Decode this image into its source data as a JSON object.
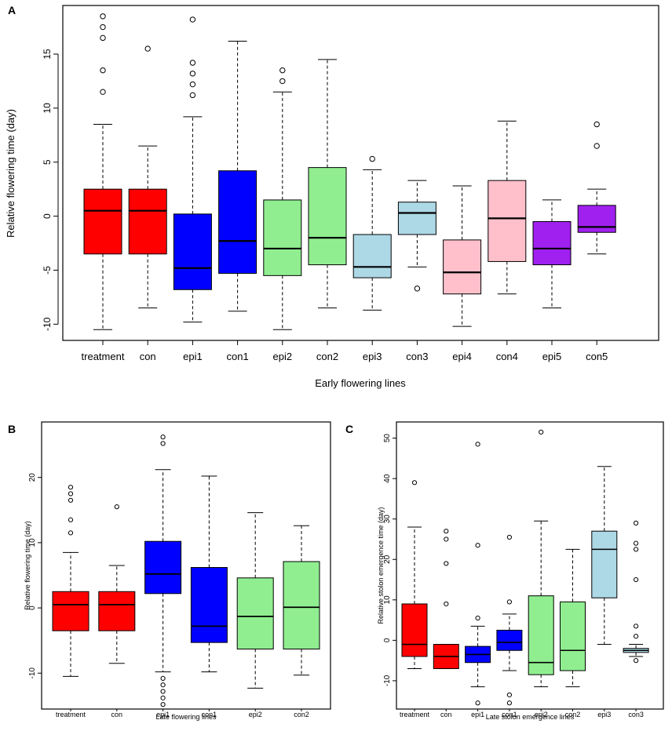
{
  "colors": {
    "red": "#ff0000",
    "blue": "#0000ff",
    "green": "#90ee90",
    "lightblue": "#add8e6",
    "pink": "#ffc0cb",
    "purple": "#a020f0"
  },
  "chart_data": [
    {
      "panel": "A",
      "type": "boxplot",
      "xlabel": "Early flowering lines",
      "ylabel": "Relative flowering time (day)",
      "ylim": [
        -11.5,
        19.5
      ],
      "yticks": [
        -10,
        -5,
        0,
        5,
        10,
        15
      ],
      "categories": [
        "treatment",
        "con",
        "epi1",
        "con1",
        "epi2",
        "con2",
        "epi3",
        "con3",
        "epi4",
        "con4",
        "epi5",
        "con5"
      ],
      "boxes": [
        {
          "color": "red",
          "lower_whisker": -10.5,
          "q1": -3.5,
          "median": 0.5,
          "q3": 2.5,
          "upper_whisker": 8.5,
          "outliers": [
            11.5,
            13.5,
            16.5,
            17.5,
            18.5
          ]
        },
        {
          "color": "red",
          "lower_whisker": -8.5,
          "q1": -3.5,
          "median": 0.5,
          "q3": 2.5,
          "upper_whisker": 6.5,
          "outliers": [
            15.5
          ]
        },
        {
          "color": "blue",
          "lower_whisker": -9.8,
          "q1": -6.8,
          "median": -4.8,
          "q3": 0.2,
          "upper_whisker": 9.2,
          "outliers": [
            11.2,
            12.2,
            13.2,
            14.2,
            18.2
          ]
        },
        {
          "color": "blue",
          "lower_whisker": -8.8,
          "q1": -5.3,
          "median": -2.3,
          "q3": 4.2,
          "upper_whisker": 16.2,
          "outliers": []
        },
        {
          "color": "green",
          "lower_whisker": -10.5,
          "q1": -5.5,
          "median": -3.0,
          "q3": 1.5,
          "upper_whisker": 11.5,
          "outliers": [
            12.5,
            13.5
          ]
        },
        {
          "color": "green",
          "lower_whisker": -8.5,
          "q1": -4.5,
          "median": -2.0,
          "q3": 4.5,
          "upper_whisker": 14.5,
          "outliers": []
        },
        {
          "color": "lightblue",
          "lower_whisker": -8.7,
          "q1": -5.7,
          "median": -4.7,
          "q3": -1.7,
          "upper_whisker": 4.3,
          "outliers": [
            5.3
          ]
        },
        {
          "color": "lightblue",
          "lower_whisker": -4.7,
          "q1": -1.7,
          "median": 0.3,
          "q3": 1.3,
          "upper_whisker": 3.3,
          "outliers": [
            -6.7
          ]
        },
        {
          "color": "pink",
          "lower_whisker": -10.2,
          "q1": -7.2,
          "median": -5.2,
          "q3": -2.2,
          "upper_whisker": 2.8,
          "outliers": []
        },
        {
          "color": "pink",
          "lower_whisker": -7.2,
          "q1": -4.2,
          "median": -0.2,
          "q3": 3.3,
          "upper_whisker": 8.8,
          "outliers": []
        },
        {
          "color": "purple",
          "lower_whisker": -8.5,
          "q1": -4.5,
          "median": -3.0,
          "q3": -0.5,
          "upper_whisker": 1.5,
          "outliers": []
        },
        {
          "color": "purple",
          "lower_whisker": -3.5,
          "q1": -1.5,
          "median": -1.0,
          "q3": 1.0,
          "upper_whisker": 2.5,
          "outliers": [
            6.5,
            8.5
          ]
        }
      ]
    },
    {
      "panel": "B",
      "type": "boxplot",
      "xlabel": "Late flowering lines",
      "ylabel": "Relative flowering time (day)",
      "ylim": [
        -15.5,
        28.5
      ],
      "yticks": [
        -10,
        0,
        10,
        20
      ],
      "categories": [
        "treatment",
        "con",
        "epi1",
        "con1",
        "epi2",
        "con2"
      ],
      "boxes": [
        {
          "color": "red",
          "lower_whisker": -10.5,
          "q1": -3.5,
          "median": 0.5,
          "q3": 2.5,
          "upper_whisker": 8.5,
          "outliers": [
            11.5,
            13.5,
            16.5,
            17.5,
            18.5
          ]
        },
        {
          "color": "red",
          "lower_whisker": -8.5,
          "q1": -3.5,
          "median": 0.5,
          "q3": 2.5,
          "upper_whisker": 6.5,
          "outliers": [
            15.5
          ]
        },
        {
          "color": "blue",
          "lower_whisker": -9.8,
          "q1": 2.2,
          "median": 5.2,
          "q3": 10.2,
          "upper_whisker": 21.2,
          "outliers": [
            -10.8,
            -11.8,
            -12.8,
            -13.8,
            -14.8,
            25.2,
            26.2
          ]
        },
        {
          "color": "blue",
          "lower_whisker": -9.8,
          "q1": -5.3,
          "median": -2.8,
          "q3": 6.2,
          "upper_whisker": 20.2,
          "outliers": []
        },
        {
          "color": "green",
          "lower_whisker": -12.3,
          "q1": -6.3,
          "median": -1.3,
          "q3": 4.6,
          "upper_whisker": 14.6,
          "outliers": []
        },
        {
          "color": "green",
          "lower_whisker": -10.3,
          "q1": -6.3,
          "median": 0.1,
          "q3": 7.1,
          "upper_whisker": 12.6,
          "outliers": []
        }
      ]
    },
    {
      "panel": "C",
      "type": "boxplot",
      "xlabel": "Late stolon emergence lines",
      "ylabel": "Relative stolon emergence time (day)",
      "ylim": [
        -17,
        54
      ],
      "yticks": [
        -10,
        0,
        10,
        20,
        30,
        40,
        50
      ],
      "categories": [
        "treatment",
        "con",
        "epi1",
        "con1",
        "epi2",
        "con2",
        "epi3",
        "con3"
      ],
      "boxes": [
        {
          "color": "red",
          "lower_whisker": -7,
          "q1": -4,
          "median": -1,
          "q3": 9,
          "upper_whisker": 28,
          "outliers": [
            39
          ]
        },
        {
          "color": "red",
          "lower_whisker": -7,
          "q1": -7,
          "median": -4,
          "q3": -1,
          "upper_whisker": -1,
          "outliers": [
            9,
            19,
            25,
            27
          ]
        },
        {
          "color": "blue",
          "lower_whisker": -11.5,
          "q1": -5.5,
          "median": -3.5,
          "q3": -1.5,
          "upper_whisker": 3.5,
          "outliers": [
            -15.5,
            5.5,
            23.5,
            48.5
          ]
        },
        {
          "color": "blue",
          "lower_whisker": -7.5,
          "q1": -2.5,
          "median": -0.5,
          "q3": 2.5,
          "upper_whisker": 6.5,
          "outliers": [
            -15.5,
            -13.5,
            9.5,
            25.5
          ]
        },
        {
          "color": "green",
          "lower_whisker": -11.5,
          "q1": -8.5,
          "median": -5.5,
          "q3": 11.0,
          "upper_whisker": 29.5,
          "outliers": [
            51.5
          ]
        },
        {
          "color": "green",
          "lower_whisker": -11.5,
          "q1": -7.5,
          "median": -2.5,
          "q3": 9.5,
          "upper_whisker": 22.5,
          "outliers": []
        },
        {
          "color": "lightblue",
          "lower_whisker": -1,
          "q1": 10.5,
          "median": 22.5,
          "q3": 27,
          "upper_whisker": 43,
          "outliers": []
        },
        {
          "color": "lightblue",
          "lower_whisker": -4,
          "q1": -3,
          "median": -2.5,
          "q3": -2,
          "upper_whisker": -1,
          "outliers": [
            -5,
            1,
            3.5,
            15,
            22.5,
            24,
            29
          ]
        }
      ]
    }
  ]
}
